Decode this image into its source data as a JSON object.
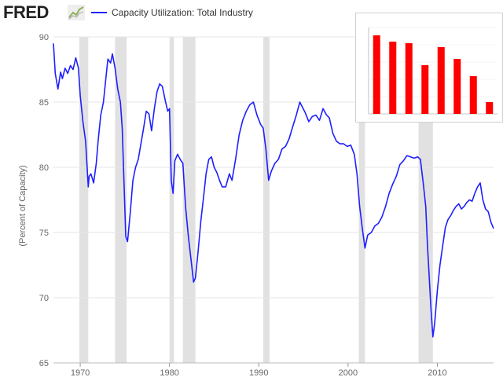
{
  "header": {
    "logo_text": "FRED",
    "legend_label": "Capacity Utilization: Total Industry",
    "line_color": "#1f1fff"
  },
  "inset": {
    "title": "",
    "bar_color": "#ff0000",
    "values": [
      100,
      92,
      90,
      62,
      85,
      70,
      48,
      15
    ],
    "ymax": 110
  },
  "chart_data": {
    "type": "line",
    "title": "",
    "xlabel": "",
    "ylabel": "(Percent of Capacity)",
    "ylim": [
      65,
      90
    ],
    "xlim": [
      1967.0,
      2016.3
    ],
    "yticks": [
      "65",
      "70",
      "75",
      "80",
      "85",
      "90"
    ],
    "xticks": [
      "1970",
      "1980",
      "1990",
      "2000",
      "2010"
    ],
    "grid": "horizontal",
    "recessions": [
      [
        1969.9,
        1970.9
      ],
      [
        1973.9,
        1975.2
      ],
      [
        1980.0,
        1980.5
      ],
      [
        1981.5,
        1982.9
      ],
      [
        1990.5,
        1991.2
      ],
      [
        2001.2,
        2001.9
      ],
      [
        2007.9,
        2009.5
      ]
    ],
    "series": [
      {
        "name": "Capacity Utilization: Total Industry",
        "color": "#1f1fff",
        "x": [
          1967.0,
          1967.2,
          1967.5,
          1967.8,
          1968.0,
          1968.3,
          1968.6,
          1968.9,
          1969.2,
          1969.5,
          1969.8,
          1970.0,
          1970.3,
          1970.6,
          1970.9,
          1971.0,
          1971.2,
          1971.5,
          1971.8,
          1972.0,
          1972.3,
          1972.6,
          1972.9,
          1973.1,
          1973.4,
          1973.6,
          1973.9,
          1974.2,
          1974.5,
          1974.7,
          1974.9,
          1975.1,
          1975.3,
          1975.6,
          1975.9,
          1976.2,
          1976.5,
          1976.8,
          1977.1,
          1977.4,
          1977.7,
          1978.0,
          1978.3,
          1978.6,
          1978.9,
          1979.2,
          1979.5,
          1979.8,
          1980.0,
          1980.2,
          1980.4,
          1980.6,
          1980.9,
          1981.2,
          1981.5,
          1981.8,
          1982.1,
          1982.4,
          1982.7,
          1982.9,
          1983.2,
          1983.5,
          1983.8,
          1984.1,
          1984.4,
          1984.7,
          1985.0,
          1985.3,
          1985.6,
          1985.9,
          1986.3,
          1986.7,
          1987.0,
          1987.4,
          1987.8,
          1988.2,
          1988.6,
          1989.0,
          1989.4,
          1989.8,
          1990.2,
          1990.5,
          1990.8,
          1991.1,
          1991.4,
          1991.8,
          1992.2,
          1992.6,
          1993.0,
          1993.4,
          1993.8,
          1994.2,
          1994.6,
          1994.9,
          1995.2,
          1995.6,
          1996.0,
          1996.4,
          1996.8,
          1997.2,
          1997.6,
          1997.9,
          1998.3,
          1998.7,
          1999.1,
          1999.5,
          1999.9,
          2000.3,
          2000.7,
          2001.0,
          2001.3,
          2001.6,
          2001.9,
          2002.2,
          2002.6,
          2003.0,
          2003.4,
          2003.8,
          2004.2,
          2004.6,
          2005.0,
          2005.4,
          2005.8,
          2006.2,
          2006.6,
          2007.0,
          2007.4,
          2007.8,
          2008.1,
          2008.4,
          2008.7,
          2008.9,
          2009.1,
          2009.3,
          2009.5,
          2009.7,
          2010.0,
          2010.3,
          2010.6,
          2010.9,
          2011.2,
          2011.5,
          2011.8,
          2012.1,
          2012.4,
          2012.7,
          2013.0,
          2013.3,
          2013.6,
          2013.9,
          2014.2,
          2014.5,
          2014.8,
          2015.1,
          2015.4,
          2015.7,
          2016.0,
          2016.3
        ],
        "values": [
          89.5,
          87.2,
          86.0,
          87.3,
          86.8,
          87.6,
          87.2,
          87.8,
          87.5,
          88.4,
          87.6,
          85.5,
          83.5,
          82.0,
          78.5,
          79.3,
          79.5,
          78.8,
          80.3,
          82.0,
          84.0,
          85.0,
          87.0,
          88.3,
          88.0,
          88.7,
          87.6,
          86.0,
          85.0,
          83.0,
          79.0,
          74.7,
          74.3,
          76.5,
          79.0,
          80.0,
          80.6,
          81.8,
          83.0,
          84.3,
          84.1,
          82.8,
          84.5,
          85.8,
          86.4,
          86.2,
          85.2,
          84.3,
          84.5,
          79.0,
          78.0,
          80.5,
          81.0,
          80.6,
          80.3,
          77.0,
          74.8,
          73.0,
          71.2,
          71.5,
          73.5,
          75.8,
          77.6,
          79.5,
          80.6,
          80.8,
          80.0,
          79.6,
          79.0,
          78.5,
          78.5,
          79.5,
          79.0,
          80.6,
          82.5,
          83.6,
          84.3,
          84.8,
          85.0,
          84.0,
          83.3,
          83.0,
          81.4,
          79.0,
          79.7,
          80.3,
          80.6,
          81.4,
          81.6,
          82.2,
          83.1,
          84.0,
          85.0,
          84.6,
          84.2,
          83.5,
          83.9,
          84.0,
          83.6,
          84.5,
          84.0,
          83.8,
          82.6,
          82.0,
          81.8,
          81.8,
          81.6,
          81.7,
          81.0,
          79.5,
          77.0,
          75.3,
          73.8,
          74.8,
          75.0,
          75.5,
          75.7,
          76.2,
          77.0,
          78.0,
          78.7,
          79.3,
          80.2,
          80.5,
          80.9,
          80.8,
          80.7,
          80.8,
          80.6,
          78.9,
          77.0,
          74.0,
          71.5,
          69.0,
          67.0,
          68.0,
          70.5,
          72.5,
          74.0,
          75.4,
          76.0,
          76.3,
          76.7,
          77.0,
          77.2,
          76.8,
          77.0,
          77.3,
          77.5,
          77.4,
          78.0,
          78.5,
          78.8,
          77.5,
          76.8,
          76.6,
          75.8,
          75.3
        ]
      }
    ]
  }
}
